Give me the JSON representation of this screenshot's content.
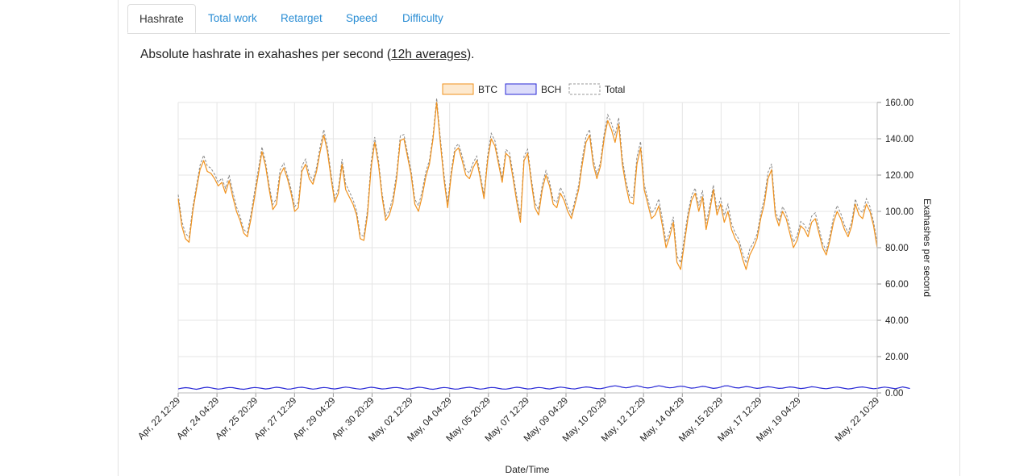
{
  "tabs": [
    {
      "label": "Hashrate",
      "active": true
    },
    {
      "label": "Total work",
      "active": false
    },
    {
      "label": "Retarget",
      "active": false
    },
    {
      "label": "Speed",
      "active": false
    },
    {
      "label": "Difficulty",
      "active": false
    }
  ],
  "description": {
    "prefix": "Absolute hashrate in exahashes per second (",
    "link": "12h averages",
    "suffix": ")."
  },
  "colors": {
    "btc": "#f0921e",
    "btc_fill": "#fde9cf",
    "bch": "#2929d6",
    "bch_fill": "#dcdcfa",
    "total": "#888888",
    "grid": "#e5e5e5",
    "tab_link": "#2a8dd4"
  },
  "chart_data": {
    "type": "line",
    "xlabel": "Date/Time",
    "ylabel": "Exahashes per second",
    "y_axis_side": "right",
    "ylim": [
      0,
      160
    ],
    "yticks": [
      "0.00",
      "20.00",
      "40.00",
      "60.00",
      "80.00",
      "100.00",
      "120.00",
      "140.00",
      "160.00"
    ],
    "xticks": [
      "Apr, 22 12:29",
      "Apr, 24 04:29",
      "Apr, 25 20:29",
      "Apr, 27 12:29",
      "Apr, 29 04:29",
      "Apr, 30 20:29",
      "May, 02 12:29",
      "May, 04 04:29",
      "May, 05 20:29",
      "May, 07 12:29",
      "May, 09 04:29",
      "May, 10 20:29",
      "May, 12 12:29",
      "May, 14 04:29",
      "May, 15 20:29",
      "May, 17 12:29",
      "May, 19 04:29",
      "May, 22 10:29"
    ],
    "x_start": "Apr, 22 12:29",
    "x_end": "May, 22 10:29",
    "grid": true,
    "legend_position": "top-center",
    "series": [
      {
        "name": "BTC",
        "color": "#f0921e",
        "values": [
          107,
          92,
          85,
          83,
          100,
          112,
          123,
          128,
          122,
          121,
          118,
          114,
          116,
          110,
          117,
          108,
          100,
          95,
          88,
          86,
          96,
          108,
          120,
          133,
          125,
          112,
          101,
          104,
          120,
          124,
          118,
          110,
          100,
          102,
          122,
          126,
          118,
          115,
          122,
          133,
          142,
          133,
          118,
          105,
          110,
          126,
          112,
          108,
          104,
          98,
          85,
          84,
          98,
          124,
          138,
          126,
          108,
          95,
          98,
          105,
          118,
          139,
          140,
          130,
          120,
          104,
          100,
          108,
          119,
          126,
          140,
          160,
          138,
          118,
          102,
          120,
          133,
          135,
          128,
          120,
          118,
          124,
          128,
          118,
          107,
          128,
          140,
          136,
          126,
          116,
          132,
          130,
          118,
          105,
          94,
          128,
          132,
          116,
          102,
          98,
          112,
          120,
          114,
          104,
          102,
          110,
          106,
          100,
          96,
          104,
          112,
          126,
          138,
          142,
          126,
          118,
          125,
          140,
          150,
          145,
          138,
          148,
          126,
          114,
          105,
          104,
          126,
          135,
          112,
          104,
          96,
          98,
          103,
          92,
          80,
          86,
          94,
          72,
          68,
          82,
          96,
          106,
          110,
          100,
          108,
          90,
          100,
          112,
          98,
          104,
          94,
          100,
          90,
          85,
          82,
          74,
          68,
          76,
          80,
          85,
          96,
          104,
          118,
          123,
          98,
          92,
          100,
          96,
          88,
          80,
          84,
          92,
          90,
          86,
          94,
          96,
          88,
          80,
          76,
          84,
          94,
          100,
          96,
          90,
          86,
          92,
          104,
          98,
          96,
          104,
          100,
          92,
          80
        ]
      },
      {
        "name": "BCH",
        "color": "#2929d6",
        "values": [
          2.2,
          2.6,
          2.9,
          2.7,
          2.3,
          2.0,
          2.4,
          2.9,
          3.1,
          2.8,
          2.4,
          2.1,
          2.3,
          2.7,
          3.0,
          2.9,
          2.5,
          2.2,
          2.0,
          2.3,
          2.7,
          3.0,
          2.8,
          2.5,
          2.2,
          2.4,
          2.8,
          3.1,
          2.9,
          2.5,
          2.1,
          2.2,
          2.6,
          3.0,
          3.1,
          2.8,
          2.4,
          2.1,
          2.3,
          2.7,
          3.0,
          2.8,
          2.4,
          2.2,
          2.5,
          2.9,
          3.2,
          3.0,
          2.6,
          2.3,
          2.1,
          2.4,
          2.8,
          3.1,
          2.9,
          2.5,
          2.2,
          2.3,
          2.6,
          2.9,
          3.0,
          2.7,
          2.3,
          2.1,
          2.3,
          2.7,
          3.1,
          3.0,
          2.6,
          2.2,
          2.0,
          2.3,
          2.7,
          3.0,
          2.8,
          2.4,
          2.1,
          2.2,
          2.6,
          2.9,
          3.1,
          2.8,
          2.4,
          2.1,
          2.3,
          2.7,
          3.0,
          2.9,
          2.5,
          2.2,
          2.1,
          2.4,
          2.8,
          3.1,
          2.9,
          2.5,
          2.2,
          2.3,
          2.7,
          3.0,
          2.8,
          2.4,
          2.2,
          2.5,
          2.9,
          3.2,
          3.0,
          2.6,
          2.3,
          2.2,
          2.6,
          3.0,
          3.3,
          3.1,
          2.7,
          2.4,
          2.3,
          2.7,
          3.2,
          3.6,
          3.9,
          3.6,
          3.1,
          2.8,
          3.1,
          3.6,
          3.9,
          3.5,
          3.0,
          2.7,
          3.0,
          3.5,
          3.9,
          3.6,
          3.1,
          2.8,
          3.0,
          3.4,
          3.7,
          3.5,
          3.0,
          2.6,
          2.8,
          3.2,
          3.6,
          3.4,
          2.9,
          2.5,
          2.7,
          3.2,
          3.8,
          3.9,
          3.4,
          2.9,
          2.7,
          3.1,
          3.5,
          3.3,
          2.8,
          2.5,
          2.7,
          3.1,
          3.4,
          3.2,
          2.8,
          2.5,
          2.6,
          3.0,
          3.3,
          3.1,
          2.7,
          2.4,
          2.6,
          3.0,
          3.4,
          3.2,
          2.8,
          2.5,
          2.3,
          2.6,
          3.0,
          3.2,
          2.9,
          2.5,
          2.2,
          2.4,
          2.8,
          3.1,
          3.3,
          3.0,
          2.6,
          2.3,
          2.5,
          2.9,
          3.2,
          3.0,
          2.6,
          2.3,
          2.8,
          3.3,
          2.9,
          2.4
        ]
      },
      {
        "name": "Total",
        "color": "#888888",
        "dashed": true,
        "values": []
      }
    ]
  }
}
